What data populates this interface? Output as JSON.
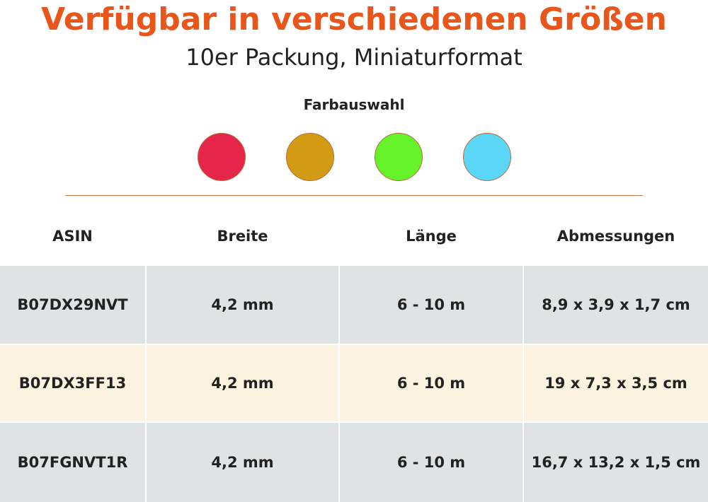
{
  "header": {
    "title": "Verfügbar in verschiedenen Größen",
    "subtitle": "10er Packung, Miniaturformat"
  },
  "colors": {
    "label": "Farbauswahl",
    "swatches": [
      "#e5264a",
      "#d39a14",
      "#66f229",
      "#5ad6f6"
    ]
  },
  "table": {
    "headers": [
      "ASIN",
      "Breite",
      "Länge",
      "Abmessungen"
    ],
    "rows": [
      [
        "B07DX29NVT",
        "4,2 mm",
        "6 - 10 m",
        "8,9 x 3,9 x 1,7 cm"
      ],
      [
        "B07DX3FF13",
        "4,2 mm",
        "6 - 10 m",
        "19 x 7,3 x 3,5 cm"
      ],
      [
        "B07FGNVT1R",
        "4,2 mm",
        "6 - 10 m",
        "16,7 x 13,2 x 1,5 cm"
      ]
    ],
    "row_colors": [
      "#dfe3e3",
      "#fcf2e0",
      "#dfe3e3"
    ]
  }
}
